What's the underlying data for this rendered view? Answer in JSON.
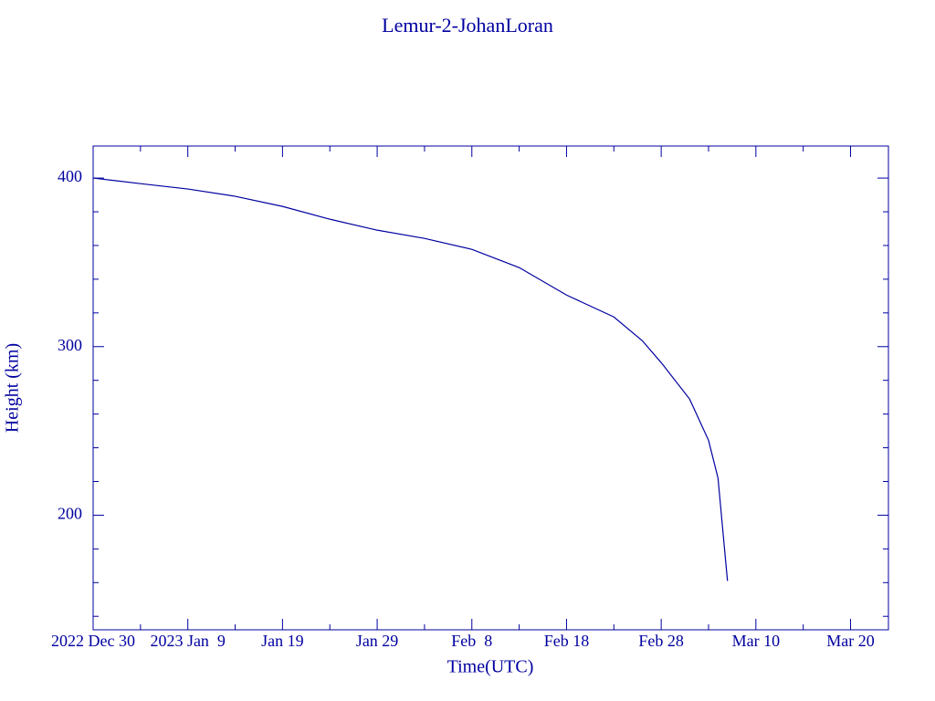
{
  "chart_data": {
    "type": "line",
    "title": "Lemur-2-JohanLoran",
    "x_label": "Time(UTC)",
    "y_label": "Height (km)",
    "x": [
      "2022-12-30",
      "2023-01-04",
      "2023-01-09",
      "2023-01-14",
      "2023-01-19",
      "2023-01-24",
      "2023-01-29",
      "2023-02-03",
      "2023-02-08",
      "2023-02-13",
      "2023-02-18",
      "2023-02-23",
      "2023-02-26",
      "2023-02-28",
      "2023-03-03",
      "2023-03-05",
      "2023-03-06",
      "2023-03-07"
    ],
    "series": [
      {
        "name": "Height",
        "color": "#0000a0",
        "values": [
          400,
          396.7,
          393.5,
          389.2,
          383.2,
          375.6,
          369.1,
          364.2,
          357.7,
          346.9,
          330.6,
          317.6,
          303.5,
          290.5,
          268.9,
          244.4,
          222,
          161
        ]
      }
    ],
    "xlim": [
      "2022-12-30",
      "2023-03-24"
    ],
    "xticks": [
      {
        "value": "2022-12-30",
        "label": "2022 Dec 30"
      },
      {
        "value": "2023-01-09",
        "label": "2023 Jan  9"
      },
      {
        "value": "2023-01-19",
        "label": "Jan 19"
      },
      {
        "value": "2023-01-29",
        "label": "Jan 29"
      },
      {
        "value": "2023-02-08",
        "label": "Feb  8"
      },
      {
        "value": "2023-02-18",
        "label": "Feb 18"
      },
      {
        "value": "2023-02-28",
        "label": "Feb 28"
      },
      {
        "value": "2023-03-10",
        "label": "Mar 10"
      },
      {
        "value": "2023-03-20",
        "label": "Mar 20"
      }
    ],
    "minor_xticks": [
      "2023-01-04",
      "2023-01-14",
      "2023-01-24",
      "2023-02-03",
      "2023-02-13",
      "2023-02-23",
      "2023-03-05",
      "2023-03-15"
    ],
    "ylim": [
      132,
      419
    ],
    "yticks": [
      200,
      300,
      400
    ],
    "minor_yticks": [
      140,
      160,
      180,
      220,
      240,
      260,
      280,
      320,
      340,
      360,
      380
    ],
    "grid": false
  }
}
